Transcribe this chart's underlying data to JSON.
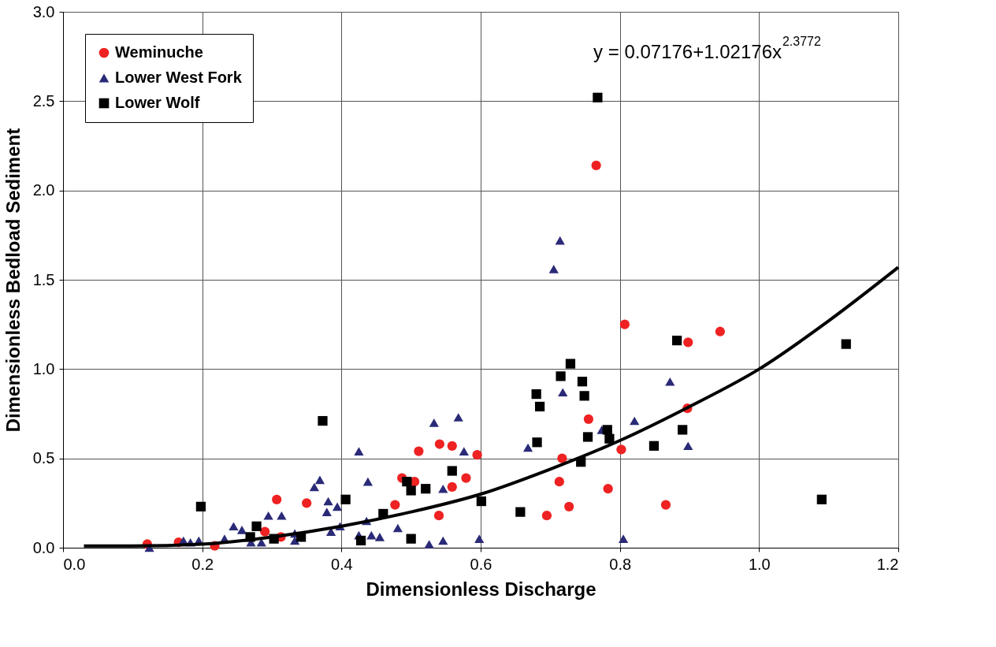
{
  "chart_data": {
    "type": "scatter",
    "xlabel": "Dimensionless Discharge",
    "ylabel": "Dimensionless Bedload Sediment",
    "xlim": [
      0,
      1.2
    ],
    "ylim": [
      0,
      3.0
    ],
    "xticks": [
      {
        "value": 0,
        "label": "0.0"
      },
      0.2,
      0.4,
      0.6,
      0.8,
      {
        "value": 1,
        "label": "1.0"
      },
      1.2
    ],
    "yticks": [
      {
        "value": 0,
        "label": "0.0"
      },
      0.5,
      {
        "value": 1,
        "label": "1.0"
      },
      1.5,
      {
        "value": 2,
        "label": "2.0"
      },
      2.5,
      {
        "value": 3,
        "label": "3.0"
      }
    ],
    "grid": true,
    "legend": "top left",
    "annotations": [
      "y = 0.07176+1.02176x$^{2.3772}$"
    ],
    "series": [
      {
        "name": "Weminuche",
        "color": "#ee2222",
        "marker": "circle",
        "x": [
          0.121,
          0.166,
          0.218,
          0.29,
          0.307,
          0.313,
          0.35,
          0.477,
          0.487,
          0.505,
          0.511,
          0.541,
          0.54,
          0.559,
          0.559,
          0.579,
          0.595,
          0.766,
          0.695,
          0.713,
          0.717,
          0.727,
          0.755,
          0.783,
          0.802,
          0.807,
          0.866,
          0.897,
          0.898,
          0.944
        ],
        "values": [
          0.02,
          0.03,
          0.01,
          0.09,
          0.27,
          0.06,
          0.25,
          0.24,
          0.39,
          0.37,
          0.54,
          0.58,
          0.18,
          0.57,
          0.34,
          0.39,
          0.52,
          2.14,
          0.18,
          0.37,
          0.5,
          0.23,
          0.72,
          0.33,
          0.55,
          1.25,
          0.24,
          0.78,
          1.15,
          1.21
        ]
      },
      {
        "name": "Lower West Fork",
        "color": "#2a2a78",
        "marker": "triangle",
        "x": [
          0.124,
          0.173,
          0.183,
          0.195,
          0.232,
          0.245,
          0.257,
          0.27,
          0.285,
          0.295,
          0.314,
          0.333,
          0.333,
          0.361,
          0.369,
          0.379,
          0.381,
          0.385,
          0.394,
          0.398,
          0.425,
          0.425,
          0.438,
          0.436,
          0.443,
          0.455,
          0.481,
          0.526,
          0.533,
          0.546,
          0.546,
          0.568,
          0.576,
          0.598,
          0.668,
          0.705,
          0.714,
          0.718,
          0.774,
          0.805,
          0.821,
          0.872,
          0.898
        ],
        "values": [
          0.0,
          0.04,
          0.03,
          0.04,
          0.05,
          0.12,
          0.1,
          0.03,
          0.03,
          0.18,
          0.18,
          0.08,
          0.04,
          0.34,
          0.38,
          0.2,
          0.26,
          0.09,
          0.23,
          0.12,
          0.54,
          0.07,
          0.37,
          0.15,
          0.07,
          0.06,
          0.11,
          0.02,
          0.7,
          0.33,
          0.04,
          0.73,
          0.54,
          0.05,
          0.56,
          1.56,
          1.72,
          0.87,
          0.66,
          0.05,
          0.71,
          0.93,
          0.57
        ]
      },
      {
        "name": "Lower Wolf",
        "color": "#000000",
        "marker": "square",
        "x": [
          0.198,
          0.269,
          0.278,
          0.303,
          0.342,
          0.373,
          0.406,
          0.428,
          0.46,
          0.494,
          0.5,
          0.5,
          0.521,
          0.559,
          0.601,
          0.657,
          0.68,
          0.681,
          0.685,
          0.715,
          0.729,
          0.744,
          0.746,
          0.749,
          0.754,
          0.768,
          0.782,
          0.785,
          0.849,
          0.882,
          0.89,
          1.09,
          1.125
        ],
        "values": [
          0.23,
          0.06,
          0.12,
          0.05,
          0.06,
          0.71,
          0.27,
          0.04,
          0.19,
          0.37,
          0.32,
          0.05,
          0.33,
          0.43,
          0.26,
          0.2,
          0.86,
          0.59,
          0.79,
          0.96,
          1.03,
          0.48,
          0.93,
          0.85,
          0.62,
          2.52,
          0.66,
          0.61,
          0.57,
          1.16,
          0.66,
          0.27,
          1.14
        ]
      },
      {
        "type": "line",
        "color": "#000000",
        "line_style": "solid",
        "x": [
          0.03,
          0.1,
          0.2,
          0.3,
          0.4,
          0.5,
          0.6,
          0.7,
          0.8,
          0.9,
          1.0,
          1.1,
          1.2
        ],
        "values": [
          0.01,
          0.01,
          0.02,
          0.06,
          0.12,
          0.2,
          0.3,
          0.44,
          0.6,
          0.79,
          1.0,
          1.27,
          1.57
        ]
      }
    ]
  }
}
